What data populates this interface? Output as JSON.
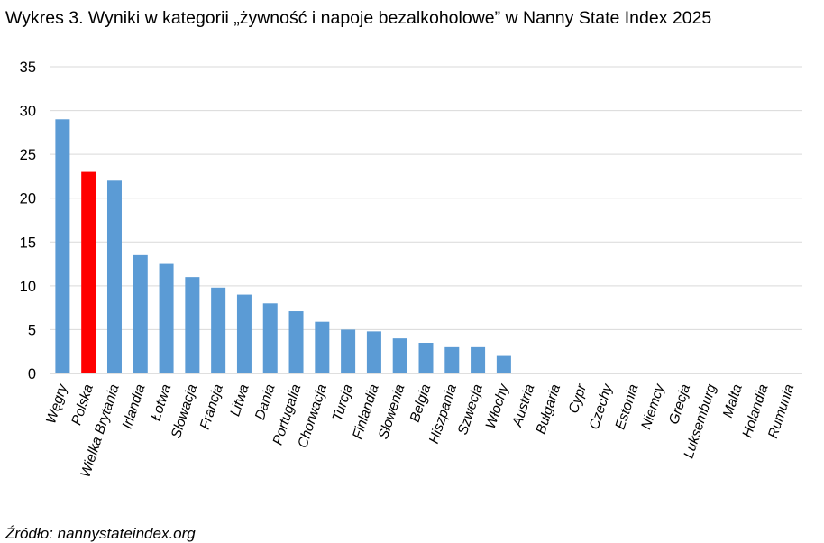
{
  "chart_data": {
    "type": "bar",
    "title": "Wykres  3. Wyniki w kategorii „żywność i napoje bezalkoholowe” w Nanny State Index 2025",
    "xlabel": "",
    "ylabel": "",
    "ylim": [
      0,
      35
    ],
    "yticks": [
      0,
      5,
      10,
      15,
      20,
      25,
      30,
      35
    ],
    "grid": true,
    "legend": "none",
    "categories": [
      "Węgry",
      "Polska",
      "Wielka Brytania",
      "Irlandia",
      "Łotwa",
      "Słowacja",
      "Francja",
      "Litwa",
      "Dania",
      "Portugalia",
      "Chorwacja",
      "Turcja",
      "Finlandia",
      "Słowenia",
      "Belgia",
      "Hiszpania",
      "Szwecja",
      "Włochy",
      "Austria",
      "Bułgaria",
      "Cypr",
      "Czechy",
      "Estonia",
      "Niemcy",
      "Grecja",
      "Luksemburg",
      "Malta",
      "Holandia",
      "Rumunia"
    ],
    "values": [
      29,
      23,
      22,
      13.5,
      12.5,
      11,
      9.8,
      9,
      8,
      7.1,
      5.9,
      5,
      4.8,
      4,
      3.5,
      3,
      3,
      2,
      0,
      0,
      0,
      0,
      0,
      0,
      0,
      0,
      0,
      0,
      0
    ],
    "colors": {
      "default": "#5b9bd5",
      "highlight": "#ff0000",
      "highlight_category": "Polska",
      "grid": "#d9d9d9",
      "axis": "#bfbfbf"
    }
  },
  "source": "Źródło: nannystateindex.org"
}
